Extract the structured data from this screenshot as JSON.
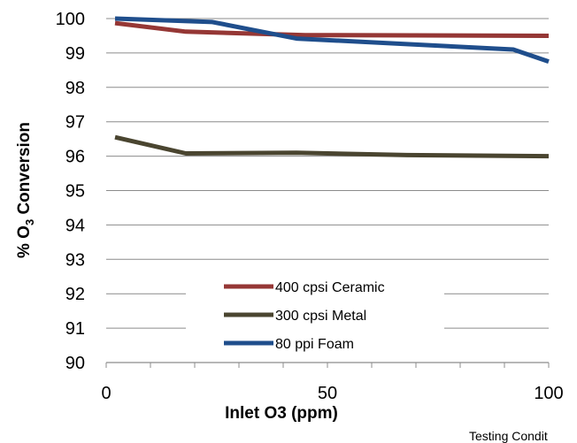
{
  "chart_data": {
    "type": "line",
    "xlabel": "Inlet O3 (ppm)",
    "ylabel": "% O3 Conversion",
    "ylabel_parts": {
      "before": "% O",
      "subscript": "3",
      "after": " Conversion"
    },
    "xlim": [
      0,
      100
    ],
    "ylim": [
      90,
      100
    ],
    "x_ticks": [
      0,
      50,
      100
    ],
    "x_tick_labels": [
      "0",
      "50",
      "100"
    ],
    "y_ticks": [
      90,
      91,
      92,
      93,
      94,
      95,
      96,
      97,
      98,
      99,
      100
    ],
    "y_tick_labels": [
      "90",
      "91",
      "92",
      "93",
      "94",
      "95",
      "96",
      "97",
      "98",
      "99",
      "100"
    ],
    "grid": "horizontal",
    "legend_position": "bottom-center",
    "series": [
      {
        "name": "400 cpsi Ceramic",
        "color": "#953735",
        "x": [
          2,
          18,
          45,
          100
        ],
        "y": [
          99.87,
          99.62,
          99.52,
          99.5
        ]
      },
      {
        "name": "300 cpsi Metal",
        "color": "#4a4530",
        "x": [
          2,
          18,
          43,
          68,
          100
        ],
        "y": [
          96.55,
          96.08,
          96.1,
          96.03,
          96.0
        ]
      },
      {
        "name": "80 ppi Foam",
        "color": "#1f4e8c",
        "x": [
          2,
          24,
          43,
          100
        ],
        "y": [
          100.0,
          99.9,
          99.42,
          98.75
        ],
        "mid": [
          {
            "x": 92,
            "y": 99.1
          }
        ]
      }
    ]
  },
  "footnote": "Testing Condit"
}
